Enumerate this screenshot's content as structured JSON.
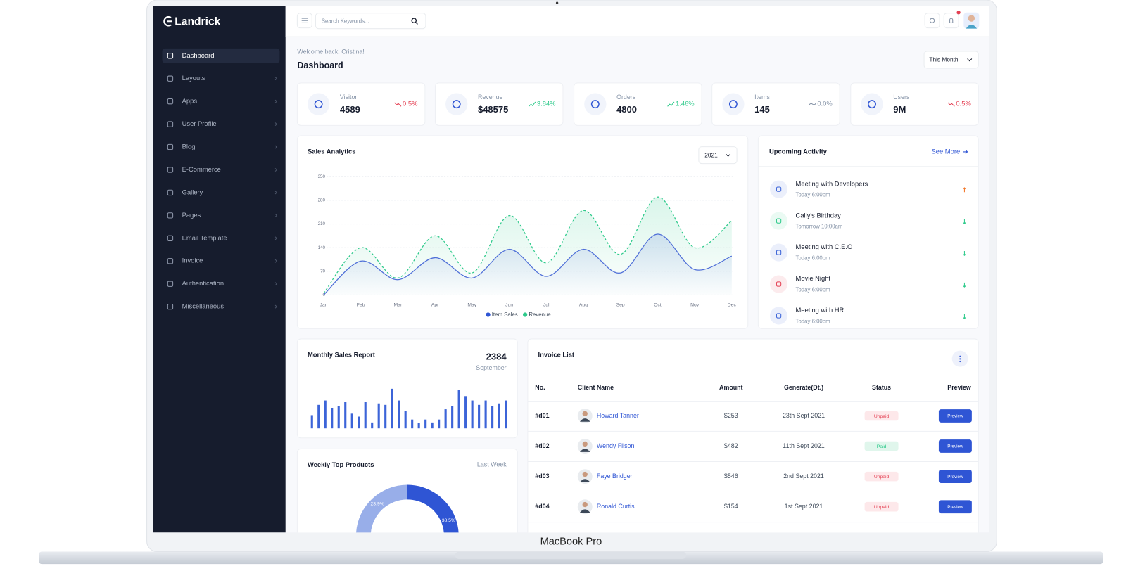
{
  "device_label": "MacBook Pro",
  "brand": "Landrick",
  "sidebar": {
    "active": 0,
    "items": [
      "Dashboard",
      "Layouts",
      "Apps",
      "User Profile",
      "Blog",
      "E-Commerce",
      "Gallery",
      "Pages",
      "Email Template",
      "Invoice",
      "Authentication",
      "Miscellaneous"
    ]
  },
  "topbar": {
    "search_placeholder": "Search Keywords..."
  },
  "header": {
    "welcome": "Welcome back, Cristina!",
    "title": "Dashboard",
    "period": "This Month"
  },
  "stats": [
    {
      "label": "Visitor",
      "value": "4589",
      "change": "0.5%",
      "trend": "down"
    },
    {
      "label": "Revenue",
      "value": "$48575",
      "change": "3.84%",
      "trend": "up"
    },
    {
      "label": "Orders",
      "value": "4800",
      "change": "1.46%",
      "trend": "up"
    },
    {
      "label": "Items",
      "value": "145",
      "change": "0.0%",
      "trend": "flat"
    },
    {
      "label": "Users",
      "value": "9M",
      "change": "0.5%",
      "trend": "down"
    }
  ],
  "sales_analytics": {
    "type": "line",
    "title": "Sales Analytics",
    "year": "2021",
    "categories": [
      "Jan",
      "Feb",
      "Mar",
      "Apr",
      "May",
      "Jun",
      "Jul",
      "Aug",
      "Sep",
      "Oct",
      "Nov",
      "Dec"
    ],
    "series": [
      {
        "name": "Item Sales",
        "color": "#4f6fd8",
        "values": [
          0,
          100,
          45,
          110,
          50,
          135,
          55,
          135,
          65,
          180,
          75,
          115
        ]
      },
      {
        "name": "Revenue",
        "color": "#2eca8b",
        "values": [
          5,
          140,
          50,
          175,
          65,
          235,
          95,
          250,
          120,
          290,
          140,
          220
        ]
      }
    ],
    "ylim": [
      0,
      350
    ],
    "yticks": [
      0,
      70,
      140,
      210,
      280,
      350
    ],
    "grid": true
  },
  "activity": {
    "title": "Upcoming Activity",
    "link": "See More",
    "items": [
      {
        "title": "Meeting with Developers",
        "time": "Today 6:00pm",
        "color": "#3c64d8",
        "trend": "up"
      },
      {
        "title": "Cally's Birthday",
        "time": "Tomorrow 10:00am",
        "color": "#2eca8b",
        "trend": "down"
      },
      {
        "title": "Meeting with C.E.O",
        "time": "Today 6:00pm",
        "color": "#3c64d8",
        "trend": "down"
      },
      {
        "title": "Movie Night",
        "time": "Today 6:00pm",
        "color": "#e43f52",
        "trend": "down"
      },
      {
        "title": "Meeting with HR",
        "time": "Today 6:00pm",
        "color": "#3c64d8",
        "trend": "down"
      }
    ]
  },
  "monthly_sales": {
    "type": "bar",
    "title": "Monthly Sales Report",
    "total": "2384",
    "month": "September",
    "color": "#3c64d8",
    "values": [
      18,
      32,
      38,
      28,
      30,
      36,
      20,
      16,
      36,
      8,
      34,
      32,
      54,
      38,
      24,
      12,
      7,
      12,
      8,
      12,
      26,
      30,
      52,
      44,
      38,
      32,
      38,
      30,
      34,
      38
    ]
  },
  "weekly_products": {
    "type": "pie",
    "title": "Weekly Top Products",
    "period": "Last Week",
    "values": [
      38.5,
      23.9
    ],
    "value_labels": [
      "38.5%",
      "23.9%"
    ],
    "colors": [
      "#2f55d4",
      "#98aee9"
    ]
  },
  "invoice": {
    "title": "Invoice List",
    "columns": [
      "No.",
      "Client Name",
      "Amount",
      "Generate(Dt.)",
      "Status",
      "Preview"
    ],
    "rows": [
      {
        "no": "#d01",
        "client": "Howard Tanner",
        "amount": "$253",
        "date": "23th Sept 2021",
        "status": "Unpaid",
        "action": "Preview"
      },
      {
        "no": "#d02",
        "client": "Wendy Filson",
        "amount": "$482",
        "date": "11th Sept 2021",
        "status": "Paid",
        "action": "Preview"
      },
      {
        "no": "#d03",
        "client": "Faye Bridger",
        "amount": "$546",
        "date": "2nd Sept 2021",
        "status": "Unpaid",
        "action": "Preview"
      },
      {
        "no": "#d04",
        "client": "Ronald Curtis",
        "amount": "$154",
        "date": "1st Sept 2021",
        "status": "Unpaid",
        "action": "Preview"
      }
    ]
  }
}
